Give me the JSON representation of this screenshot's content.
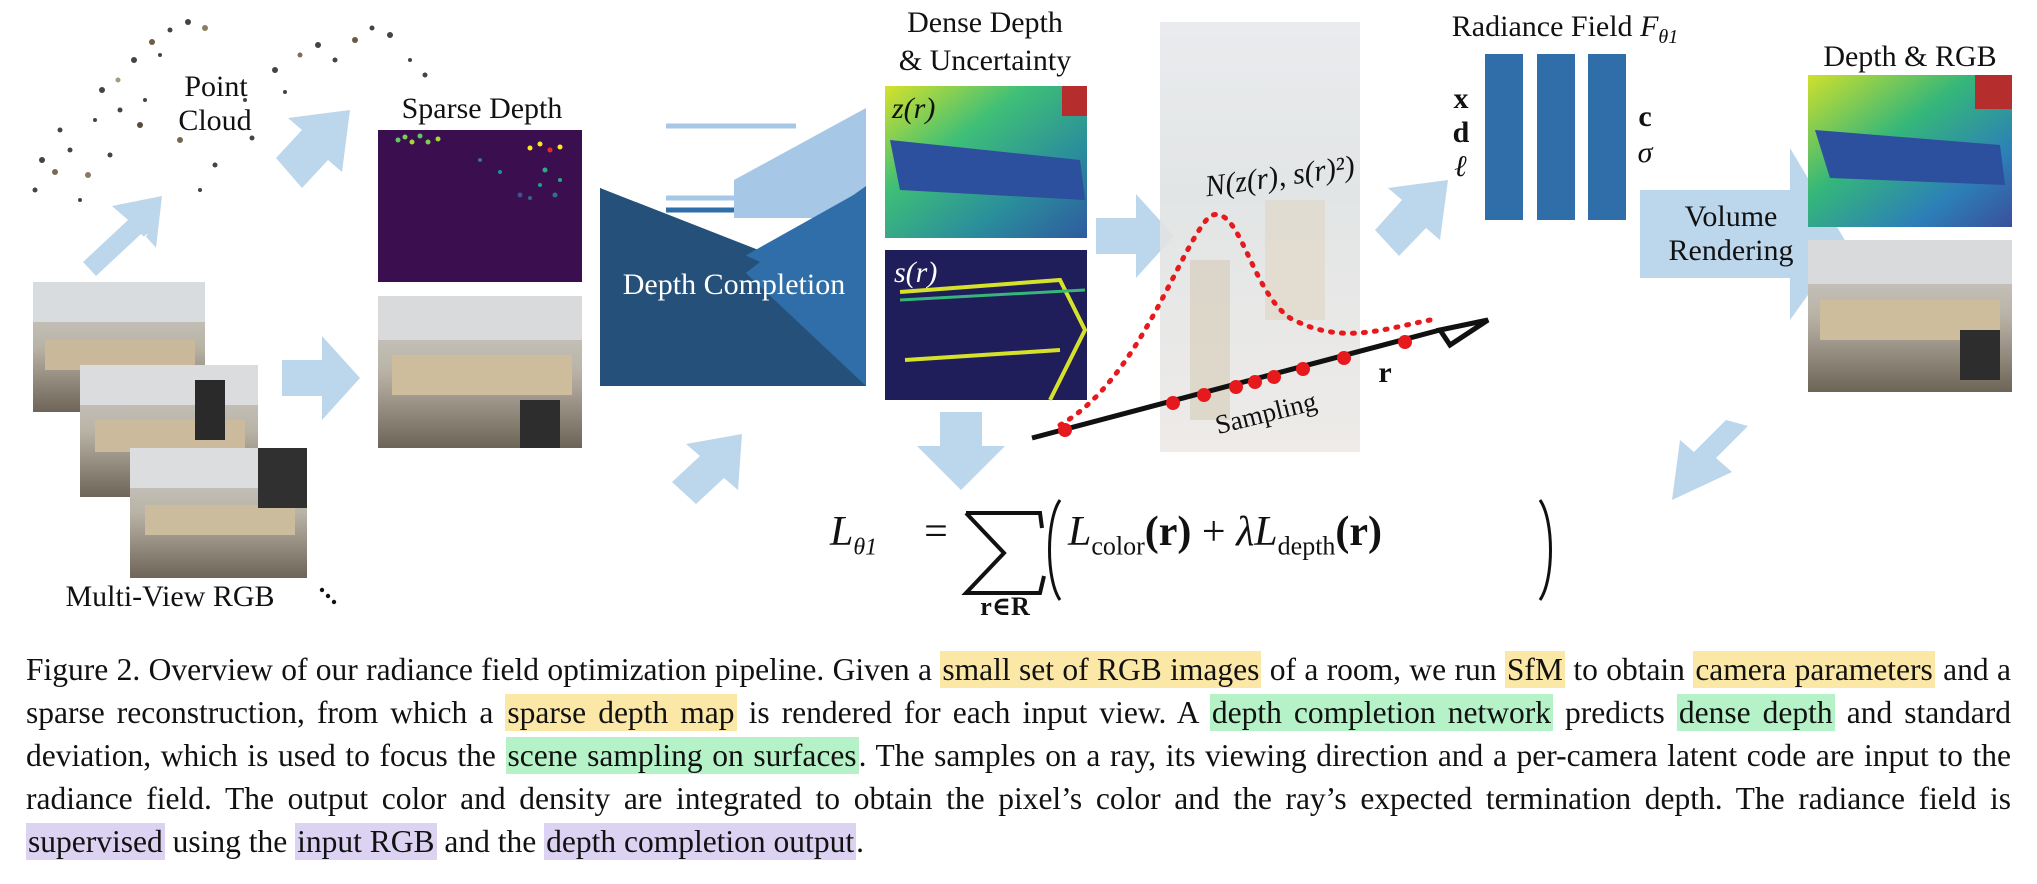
{
  "figure": {
    "labels": {
      "point_cloud_1": "Point",
      "point_cloud_2": "Cloud",
      "sfm": "SfM",
      "multi_view_rgb": "Multi-View RGB",
      "sparse_depth": "Sparse Depth",
      "depth_completion": "Depth Completion",
      "dense_depth_1": "Dense Depth",
      "dense_depth_2": "& Uncertainty",
      "z_r": "z(r)",
      "s_r": "s(r)",
      "gaussian": "N(z(r), s(r)²)",
      "sampling": "Sampling",
      "ray": "r",
      "radiance_field": "Radiance Field",
      "f_theta": "F",
      "theta_sub": "θ1",
      "inputs": [
        "x",
        "d",
        "ℓ"
      ],
      "outputs": [
        "c",
        "σ"
      ],
      "volume_rendering_1": "Volume",
      "volume_rendering_2": "Rendering",
      "depth_rgb": "Depth & RGB",
      "loss": {
        "lhs": "L",
        "lhs_sub": "θ1",
        "eq": "=",
        "sum_sub": "r∈R",
        "color_term": "L",
        "color_sub": "color",
        "r_arg": "(r)",
        "plus": "+",
        "lambda": "λ",
        "depth_term": "L",
        "depth_sub": "depth"
      }
    }
  },
  "caption": {
    "p1": "Figure 2. Overview of our radiance field optimization pipeline. Given a ",
    "h1": "small set of RGB images",
    "p2": " of a room, we run ",
    "h2": "SfM",
    "p3": " to obtain ",
    "h3": "camera parameters",
    "p4": " and a sparse reconstruction, from which a ",
    "h4": "sparse depth map",
    "p5": " is rendered for each input view. A ",
    "h5": "depth completion network",
    "p6": " predicts ",
    "h6": "dense depth",
    "p7": " and standard deviation, which is used to focus the ",
    "h7": "scene sampling on surfaces",
    "p8": ". The samples on a ray, its viewing direction and a per-camera latent code are input to the radiance field. The output color and density are integrated to obtain the pixel’s color and the ray’s expected termination depth. The radiance field is ",
    "h8": "supervised",
    "p9": " using the ",
    "h9": "input RGB",
    "p10": " and the ",
    "h10": "depth completion output",
    "p11": "."
  },
  "colors": {
    "arrow": "#bcd6ec",
    "network_dark": "#24507a",
    "network_mid": "#2f6ea8",
    "network_light": "#a7c7e6",
    "radiance_bar": "#2f6ea8",
    "sampling_red": "#e6191d",
    "sparse_bg": "#3b0f4f",
    "highlight_yellow": "#fbe8a6",
    "highlight_green": "#b6f2c8",
    "highlight_purple": "#dcd2f2"
  }
}
